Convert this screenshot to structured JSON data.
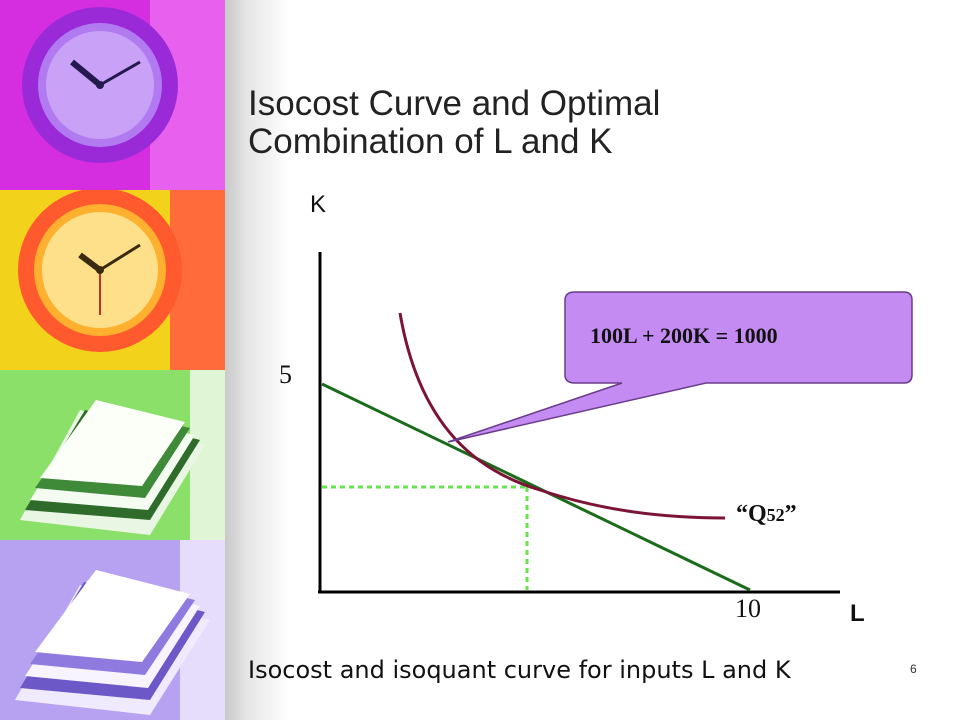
{
  "slide": {
    "title_line1": "Isocost Curve and Optimal",
    "title_line2": "Combination of L and K",
    "caption": "Isocost and isoquant curve for inputs L and K",
    "number": "6"
  },
  "diagram": {
    "y_axis_label": "K",
    "x_axis_label": "L",
    "y_intercept_label": "5",
    "x_intercept_label": "10",
    "callout_text": "100L + 200K = 1000",
    "isoquant_label_open": "“Q",
    "isoquant_label_sub": "52",
    "isoquant_label_close": "”"
  },
  "sidebar": {
    "panels": [
      {
        "name": "magenta",
        "color": "#d42ee0",
        "icon": "clock-icon"
      },
      {
        "name": "yellow",
        "color": "#f2d21a",
        "icon": "clock-icon"
      },
      {
        "name": "green",
        "color": "#8be06a",
        "icon": "papers-icon"
      },
      {
        "name": "lavender",
        "color": "#b7a2f2",
        "icon": "papers-icon"
      }
    ]
  },
  "colors": {
    "isocost_line": "#1a6b1a",
    "isoquant_curve": "#7b1436",
    "dotted_guides": "#66e64d",
    "callout_fill": "#c48cf2",
    "axis": "#000000"
  }
}
